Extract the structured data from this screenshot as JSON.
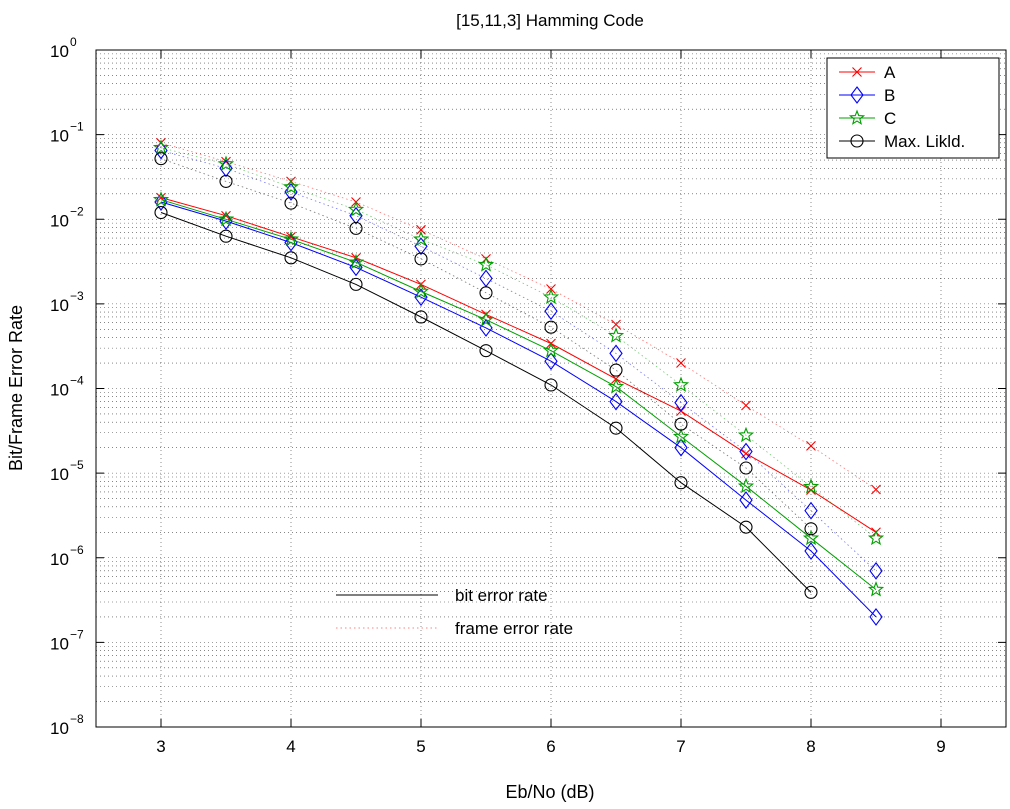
{
  "chart_data": {
    "type": "line",
    "title": "[15,11,3] Hamming Code",
    "xlabel": "Eb/No (dB)",
    "ylabel": "Bit/Frame Error Rate",
    "xlim": [
      2.5,
      9.5
    ],
    "ylim": [
      1e-08,
      1
    ],
    "yscale": "log",
    "grid": true,
    "legend_position": "top-right",
    "xticks": [
      3,
      4,
      5,
      6,
      7,
      8,
      9
    ],
    "yticks": [
      {
        "value": 1,
        "base": "10",
        "exp": "0"
      },
      {
        "value": 0.1,
        "base": "10",
        "exp": "−1"
      },
      {
        "value": 0.01,
        "base": "10",
        "exp": "−2"
      },
      {
        "value": 0.001,
        "base": "10",
        "exp": "−3"
      },
      {
        "value": 0.0001,
        "base": "10",
        "exp": "−4"
      },
      {
        "value": 1e-05,
        "base": "10",
        "exp": "−5"
      },
      {
        "value": 1e-06,
        "base": "10",
        "exp": "−6"
      },
      {
        "value": 1e-07,
        "base": "10",
        "exp": "−7"
      },
      {
        "value": 1e-08,
        "base": "10",
        "exp": "−8"
      }
    ],
    "series": [
      {
        "name": "A",
        "color": "#ff0000",
        "marker": "x",
        "ber": {
          "x": [
            3,
            3.5,
            4,
            4.5,
            5,
            5.5,
            6,
            6.5,
            7,
            7.5,
            8,
            8.5
          ],
          "y": [
            0.018,
            0.011,
            0.0062,
            0.0035,
            0.0017,
            0.00075,
            0.00034,
            0.00013,
            5.4e-05,
            1.7e-05,
            6.3e-06,
            2e-06
          ]
        },
        "fer": {
          "x": [
            3,
            3.5,
            4,
            4.5,
            5,
            5.5,
            6,
            6.5,
            7,
            7.5,
            8,
            8.5
          ],
          "y": [
            0.08,
            0.048,
            0.028,
            0.016,
            0.0075,
            0.0034,
            0.0015,
            0.00057,
            0.0002,
            6.3e-05,
            2.1e-05,
            6.4e-06
          ]
        }
      },
      {
        "name": "B",
        "color": "#0000ff",
        "marker": "diamond",
        "ber": {
          "x": [
            3,
            3.5,
            4,
            4.5,
            5,
            5.5,
            6,
            6.5,
            7,
            7.5,
            8,
            8.5
          ],
          "y": [
            0.016,
            0.0095,
            0.0053,
            0.0027,
            0.0012,
            0.00052,
            0.00021,
            7e-05,
            2e-05,
            4.8e-06,
            1.2e-06,
            2e-07
          ]
        },
        "fer": {
          "x": [
            3,
            3.5,
            4,
            4.5,
            5,
            5.5,
            6,
            6.5,
            7,
            7.5,
            8,
            8.5
          ],
          "y": [
            0.065,
            0.04,
            0.021,
            0.011,
            0.0048,
            0.002,
            0.00082,
            0.00026,
            6.8e-05,
            1.8e-05,
            3.6e-06,
            7e-07
          ]
        }
      },
      {
        "name": "C",
        "color": "#00a000",
        "marker": "star",
        "ber": {
          "x": [
            3,
            3.5,
            4,
            4.5,
            5,
            5.5,
            6,
            6.5,
            7,
            7.5,
            8,
            8.5
          ],
          "y": [
            0.017,
            0.01,
            0.0058,
            0.0031,
            0.0014,
            0.00065,
            0.00028,
            0.000105,
            2.7e-05,
            7e-06,
            1.7e-06,
            4.2e-07
          ]
        },
        "fer": {
          "x": [
            3,
            3.5,
            4,
            4.5,
            5,
            5.5,
            6,
            6.5,
            7,
            7.5,
            8,
            8.5
          ],
          "y": [
            0.07,
            0.045,
            0.024,
            0.013,
            0.0058,
            0.0029,
            0.0012,
            0.00042,
            0.00011,
            2.8e-05,
            6.9e-06,
            1.7e-06
          ]
        }
      },
      {
        "name": "Max. Likld.",
        "color": "#000000",
        "marker": "circle",
        "ber": {
          "x": [
            3,
            3.5,
            4,
            4.5,
            5,
            5.5,
            6,
            6.5,
            7,
            7.5,
            8
          ],
          "y": [
            0.012,
            0.0063,
            0.0035,
            0.0017,
            0.0007,
            0.00028,
            0.00011,
            3.4e-05,
            7.7e-06,
            2.3e-06,
            3.9e-07
          ]
        },
        "fer": {
          "x": [
            3,
            3.5,
            4,
            4.5,
            5,
            5.5,
            6,
            6.5,
            7,
            7.5,
            8
          ],
          "y": [
            0.052,
            0.028,
            0.0155,
            0.0078,
            0.0034,
            0.00135,
            0.00053,
            0.000165,
            3.8e-05,
            1.15e-05,
            2.2e-06
          ]
        }
      }
    ],
    "annotations": {
      "solid_label": "bit error rate",
      "dotted_label": "frame error rate"
    }
  }
}
